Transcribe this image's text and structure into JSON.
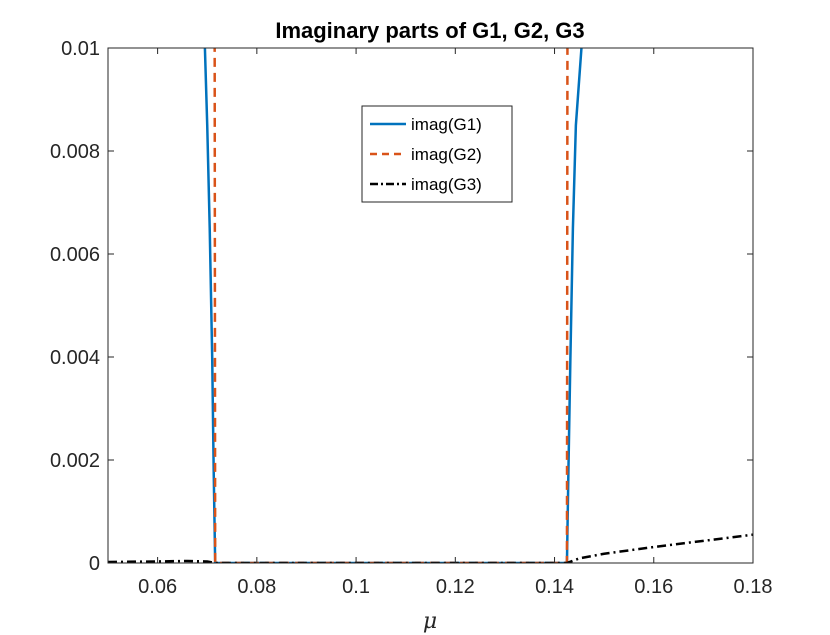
{
  "chart_data": {
    "type": "line",
    "title": "Imaginary parts of G1, G2, G3",
    "xlabel": "μ",
    "ylabel": "",
    "xlim": [
      0.05,
      0.18
    ],
    "ylim": [
      0,
      0.01
    ],
    "xticks": [
      "0.06",
      "0.08",
      "0.1",
      "0.12",
      "0.14",
      "0.16",
      "0.18"
    ],
    "xtick_values": [
      0.06,
      0.08,
      0.1,
      0.12,
      0.14,
      0.16,
      0.18
    ],
    "yticks": [
      "0",
      "0.002",
      "0.004",
      "0.006",
      "0.008",
      "0.01"
    ],
    "ytick_values": [
      0,
      0.002,
      0.004,
      0.006,
      0.008,
      0.01
    ],
    "legend_position": "top-center",
    "grid": false,
    "series": [
      {
        "name": "imag(G1)",
        "color": "#0072BD",
        "style": "solid",
        "segments": [
          [
            [
              0.0695,
              0.0101
            ],
            [
              0.07,
              0.0085
            ],
            [
              0.0705,
              0.0065
            ],
            [
              0.071,
              0.004
            ],
            [
              0.0713,
              0.0018
            ],
            [
              0.0716,
              0.0
            ],
            [
              0.08,
              0.0
            ],
            [
              0.12,
              0.0
            ],
            [
              0.1425,
              0.0
            ],
            [
              0.1428,
              0.0018
            ],
            [
              0.1432,
              0.004
            ],
            [
              0.1437,
              0.0065
            ],
            [
              0.1443,
              0.0085
            ],
            [
              0.1455,
              0.0101
            ]
          ]
        ]
      },
      {
        "name": "imag(G2)",
        "color": "#D95319",
        "style": "dashed",
        "segments": [
          [
            [
              0.0715,
              0.0101
            ],
            [
              0.0716,
              0.0
            ],
            [
              0.08,
              0.0
            ],
            [
              0.12,
              0.0
            ],
            [
              0.1425,
              0.0
            ],
            [
              0.1426,
              0.0101
            ]
          ]
        ]
      },
      {
        "name": "imag(G3)",
        "color": "#000000",
        "style": "dashdot",
        "segments": [
          [
            [
              0.05,
              2e-05
            ],
            [
              0.06,
              3e-05
            ],
            [
              0.066,
              4e-05
            ],
            [
              0.07,
              3e-05
            ],
            [
              0.0716,
              0.0
            ],
            [
              0.1,
              0.0
            ],
            [
              0.1425,
              0.0
            ],
            [
              0.145,
              9e-05
            ],
            [
              0.15,
              0.00018
            ],
            [
              0.16,
              0.00031
            ],
            [
              0.17,
              0.00043
            ],
            [
              0.18,
              0.00055
            ]
          ]
        ]
      }
    ]
  }
}
